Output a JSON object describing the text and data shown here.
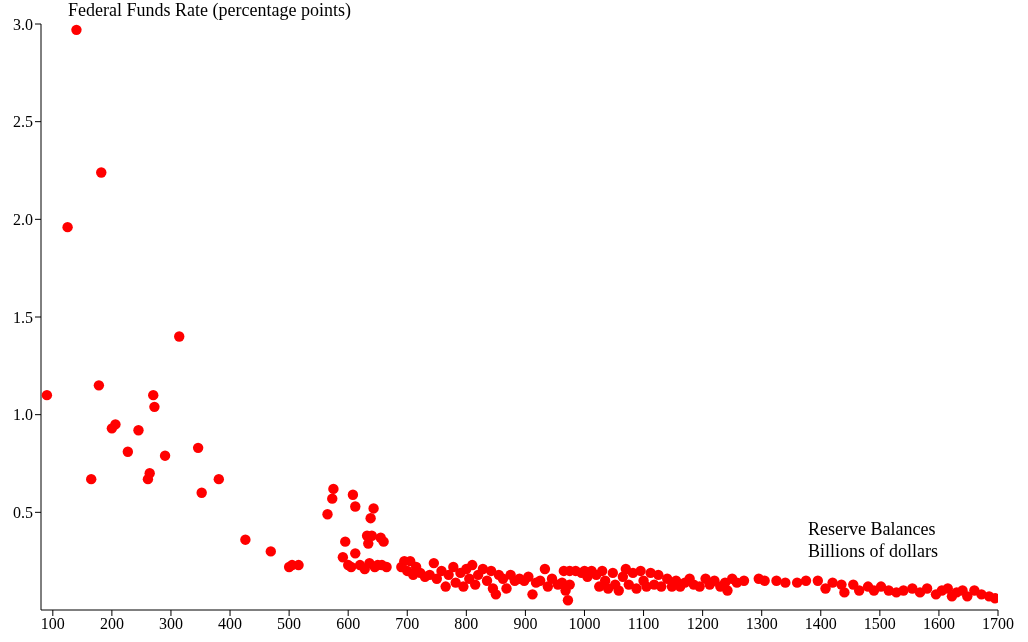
{
  "chart_data": {
    "type": "scatter",
    "ylabel": "Federal Funds Rate (percentage points)",
    "xlabel": "Reserve Balances\nBillions of dollars",
    "xlim": [
      80,
      1700
    ],
    "xticks": [
      100,
      200,
      300,
      400,
      500,
      600,
      700,
      800,
      900,
      1000,
      1100,
      1200,
      1300,
      1400,
      1500,
      1600,
      1700
    ],
    "ylim": [
      0,
      3.0
    ],
    "yticks": [
      {
        "value": 0.5,
        "label": "0.5"
      },
      {
        "value": 1,
        "label": "1.0"
      },
      {
        "value": 1.5,
        "label": "1.5"
      },
      {
        "value": 2,
        "label": "2.0"
      },
      {
        "value": 2.5,
        "label": "2.5"
      },
      {
        "value": 3,
        "label": "3.0"
      }
    ],
    "grid": false,
    "legend": false,
    "marker": "circle",
    "series": [
      {
        "color": "#ff0000",
        "x": [
          90,
          125,
          140,
          165,
          178,
          182,
          200,
          206,
          227,
          245,
          261,
          264,
          270,
          272,
          290,
          314,
          346,
          352,
          381,
          426,
          469,
          500,
          505,
          516,
          565,
          573,
          575,
          591,
          595,
          600,
          605,
          608,
          612,
          612,
          620,
          628,
          632,
          634,
          636,
          638,
          640,
          643,
          645,
          650,
          655,
          657,
          660,
          665,
          690,
          695,
          700,
          705,
          710,
          715,
          722,
          730,
          738,
          745,
          750,
          758,
          765,
          770,
          778,
          782,
          790,
          795,
          800,
          805,
          810,
          815,
          820,
          828,
          835,
          842,
          845,
          850,
          855,
          862,
          868,
          875,
          882,
          890,
          898,
          905,
          912,
          918,
          925,
          933,
          938,
          945,
          955,
          962,
          968,
          972,
          975,
          965,
          975,
          985,
          995,
          1000,
          1005,
          1012,
          1020,
          1025,
          1030,
          1035,
          1040,
          1048,
          1052,
          1058,
          1065,
          1070,
          1075,
          1082,
          1088,
          1095,
          1100,
          1105,
          1112,
          1118,
          1125,
          1130,
          1140,
          1148,
          1155,
          1162,
          1170,
          1178,
          1185,
          1195,
          1205,
          1212,
          1220,
          1230,
          1238,
          1242,
          1250,
          1258,
          1270,
          1295,
          1305,
          1325,
          1340,
          1360,
          1375,
          1395,
          1408,
          1420,
          1435,
          1440,
          1455,
          1465,
          1480,
          1490,
          1502,
          1515,
          1528,
          1540,
          1555,
          1568,
          1580,
          1595,
          1605,
          1615,
          1622,
          1630,
          1640,
          1648,
          1660,
          1672,
          1685,
          1695
        ],
        "values": [
          1.1,
          1.96,
          2.97,
          0.67,
          1.15,
          2.24,
          0.93,
          0.95,
          0.81,
          0.92,
          0.67,
          0.7,
          1.1,
          1.04,
          0.79,
          1.4,
          0.83,
          0.6,
          0.67,
          0.36,
          0.3,
          0.22,
          0.23,
          0.23,
          0.49,
          0.57,
          0.62,
          0.27,
          0.35,
          0.23,
          0.22,
          0.59,
          0.53,
          0.29,
          0.23,
          0.21,
          0.38,
          0.34,
          0.24,
          0.47,
          0.38,
          0.52,
          0.22,
          0.23,
          0.37,
          0.23,
          0.35,
          0.22,
          0.22,
          0.25,
          0.2,
          0.25,
          0.18,
          0.22,
          0.19,
          0.17,
          0.18,
          0.24,
          0.16,
          0.2,
          0.12,
          0.18,
          0.22,
          0.14,
          0.19,
          0.12,
          0.21,
          0.16,
          0.23,
          0.13,
          0.18,
          0.21,
          0.15,
          0.2,
          0.11,
          0.08,
          0.18,
          0.16,
          0.11,
          0.18,
          0.15,
          0.16,
          0.15,
          0.17,
          0.08,
          0.14,
          0.15,
          0.21,
          0.12,
          0.16,
          0.13,
          0.14,
          0.1,
          0.05,
          0.13,
          0.2,
          0.2,
          0.2,
          0.19,
          0.2,
          0.17,
          0.2,
          0.18,
          0.12,
          0.2,
          0.15,
          0.11,
          0.19,
          0.13,
          0.1,
          0.17,
          0.21,
          0.13,
          0.19,
          0.11,
          0.2,
          0.15,
          0.12,
          0.19,
          0.13,
          0.18,
          0.12,
          0.16,
          0.12,
          0.15,
          0.12,
          0.14,
          0.16,
          0.13,
          0.12,
          0.16,
          0.13,
          0.15,
          0.12,
          0.14,
          0.1,
          0.16,
          0.14,
          0.15,
          0.16,
          0.15,
          0.15,
          0.14,
          0.14,
          0.15,
          0.15,
          0.11,
          0.14,
          0.13,
          0.09,
          0.13,
          0.1,
          0.12,
          0.1,
          0.12,
          0.1,
          0.09,
          0.1,
          0.11,
          0.09,
          0.11,
          0.08,
          0.1,
          0.11,
          0.07,
          0.09,
          0.1,
          0.07,
          0.1,
          0.08,
          0.07,
          0.06
        ]
      }
    ]
  }
}
